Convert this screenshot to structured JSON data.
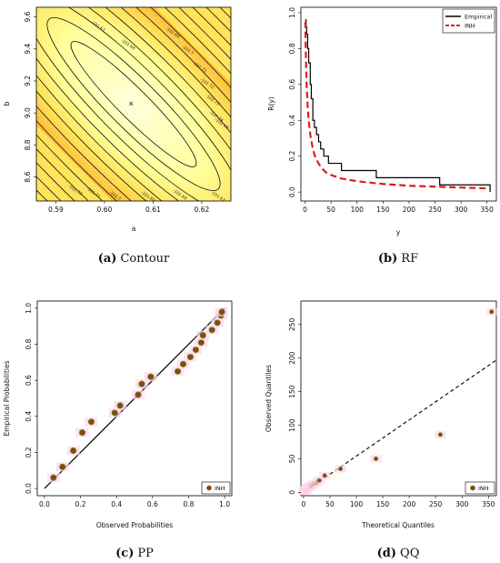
{
  "panels": {
    "contour": {
      "caption_letter": "(a)",
      "caption_text": "Contour"
    },
    "rf": {
      "caption_letter": "(b)",
      "caption_text": "RF"
    },
    "pp": {
      "caption_letter": "(c)",
      "caption_text": "PP"
    },
    "qq": {
      "caption_letter": "(d)",
      "caption_text": "QQ"
    }
  },
  "chart_data": [
    {
      "type": "heatmap",
      "xlabel": "a",
      "ylabel": "b",
      "xlim": [
        0.586,
        0.626
      ],
      "ylim": [
        8.45,
        9.66
      ],
      "xticks": [
        "0.59",
        "0.60",
        "0.61",
        "0.62"
      ],
      "yticks": [
        "8.6",
        "8.8",
        "9.0",
        "9.2",
        "9.4",
        "9.6"
      ],
      "optimum_marker": {
        "a": 0.6055,
        "b": 9.06,
        "symbol": "×"
      },
      "contour_labels": [
        "-101.67",
        "-101.68",
        "-101.69",
        "-101.7",
        "-101.71",
        "-101.72",
        "-101.73",
        "-101.74",
        "-101.75"
      ],
      "colormap": [
        "#ffffcc",
        "#fff176",
        "#ffd54f",
        "#ffa726",
        "#f4511e",
        "#e53935"
      ]
    },
    {
      "type": "line",
      "xlabel": "y",
      "ylabel": "R(y)",
      "xlim": [
        0,
        360
      ],
      "ylim": [
        0,
        1.0
      ],
      "xticks": [
        "0",
        "50",
        "100",
        "150",
        "200",
        "250",
        "300",
        "350"
      ],
      "yticks": [
        "0.0",
        "0.2",
        "0.4",
        "0.6",
        "0.8",
        "1.0"
      ],
      "legend_position": "top-right",
      "series": [
        {
          "name": "Empirical",
          "color": "#000000",
          "style": "step",
          "x": [
            0,
            2,
            3,
            5,
            7,
            10,
            12,
            15,
            18,
            22,
            26,
            30,
            36,
            45,
            70,
            137,
            259,
            356
          ],
          "y": [
            0.96,
            0.92,
            0.88,
            0.8,
            0.72,
            0.6,
            0.52,
            0.4,
            0.36,
            0.32,
            0.28,
            0.24,
            0.2,
            0.16,
            0.12,
            0.08,
            0.04,
            0.0
          ]
        },
        {
          "name": "INH",
          "color": "#e41a1c",
          "style": "dashed",
          "x": [
            0.5,
            1,
            2,
            3,
            5,
            7,
            10,
            15,
            20,
            30,
            40,
            50,
            70,
            100,
            150,
            200,
            250,
            300,
            356
          ],
          "y": [
            0.95,
            0.84,
            0.7,
            0.6,
            0.48,
            0.4,
            0.32,
            0.24,
            0.19,
            0.14,
            0.11,
            0.095,
            0.075,
            0.06,
            0.045,
            0.035,
            0.03,
            0.025,
            0.02
          ]
        }
      ]
    },
    {
      "type": "scatter",
      "xlabel": "Observed Probabilities",
      "ylabel": "Empirical Probabilities",
      "xlim": [
        0,
        1
      ],
      "ylim": [
        0,
        1
      ],
      "xticks": [
        "0.0",
        "0.2",
        "0.4",
        "0.6",
        "0.8",
        "1.0"
      ],
      "yticks": [
        "0.0",
        "0.2",
        "0.4",
        "0.6",
        "0.8",
        "1.0"
      ],
      "legend_position": "bottom-right",
      "reference_line": "y = x",
      "series": [
        {
          "name": "INH",
          "color": "#8b4513",
          "x": [
            0.05,
            0.1,
            0.16,
            0.21,
            0.26,
            0.39,
            0.42,
            0.52,
            0.54,
            0.59,
            0.74,
            0.77,
            0.81,
            0.84,
            0.87,
            0.88,
            0.93,
            0.96,
            0.98,
            0.985
          ],
          "y": [
            0.06,
            0.12,
            0.21,
            0.31,
            0.37,
            0.42,
            0.46,
            0.52,
            0.58,
            0.62,
            0.65,
            0.69,
            0.73,
            0.77,
            0.81,
            0.85,
            0.88,
            0.92,
            0.96,
            0.98
          ]
        }
      ]
    },
    {
      "type": "scatter",
      "xlabel": "Theoretical Quantiles",
      "ylabel": "Observed Quantiles",
      "xlim": [
        -5,
        365
      ],
      "ylim": [
        -5,
        285
      ],
      "xticks": [
        "0",
        "50",
        "100",
        "150",
        "200",
        "250",
        "300",
        "350"
      ],
      "yticks": [
        "0",
        "50",
        "100",
        "150",
        "200",
        "250"
      ],
      "legend_position": "bottom-right",
      "reference_line": "dashed",
      "series": [
        {
          "name": "INH",
          "color": "#8b4513",
          "x": [
            1,
            2,
            3,
            4,
            5,
            6,
            7,
            8,
            10,
            12,
            14,
            16,
            20,
            25,
            30,
            40,
            70,
            137,
            259,
            356
          ],
          "y": [
            1,
            2,
            3,
            4,
            4,
            5,
            6,
            7,
            8,
            9,
            10,
            11,
            13,
            15,
            18,
            25,
            35,
            50,
            86,
            269
          ]
        }
      ]
    }
  ]
}
